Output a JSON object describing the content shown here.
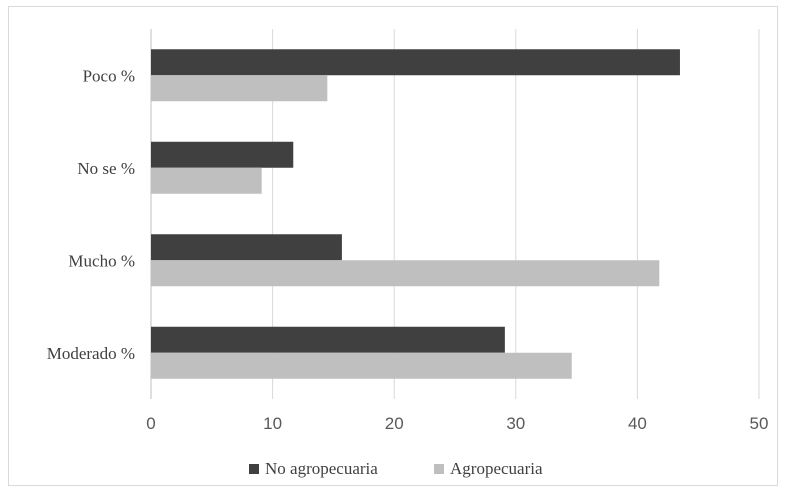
{
  "chart_data": {
    "type": "bar",
    "orientation": "horizontal",
    "categories": [
      "Poco %",
      "No se %",
      "Mucho %",
      "Moderado %"
    ],
    "series": [
      {
        "name": "No agropecuaria",
        "color": "#404040",
        "values": [
          43.5,
          11.7,
          15.7,
          29.1
        ]
      },
      {
        "name": "Agropecuaria",
        "color": "#bfbfbf",
        "values": [
          14.5,
          9.1,
          41.8,
          34.6
        ]
      }
    ],
    "xlim": [
      0,
      50
    ],
    "xticks": [
      "0",
      "10",
      "20",
      "30",
      "40",
      "50"
    ],
    "grid": true,
    "legend_position": "bottom"
  }
}
